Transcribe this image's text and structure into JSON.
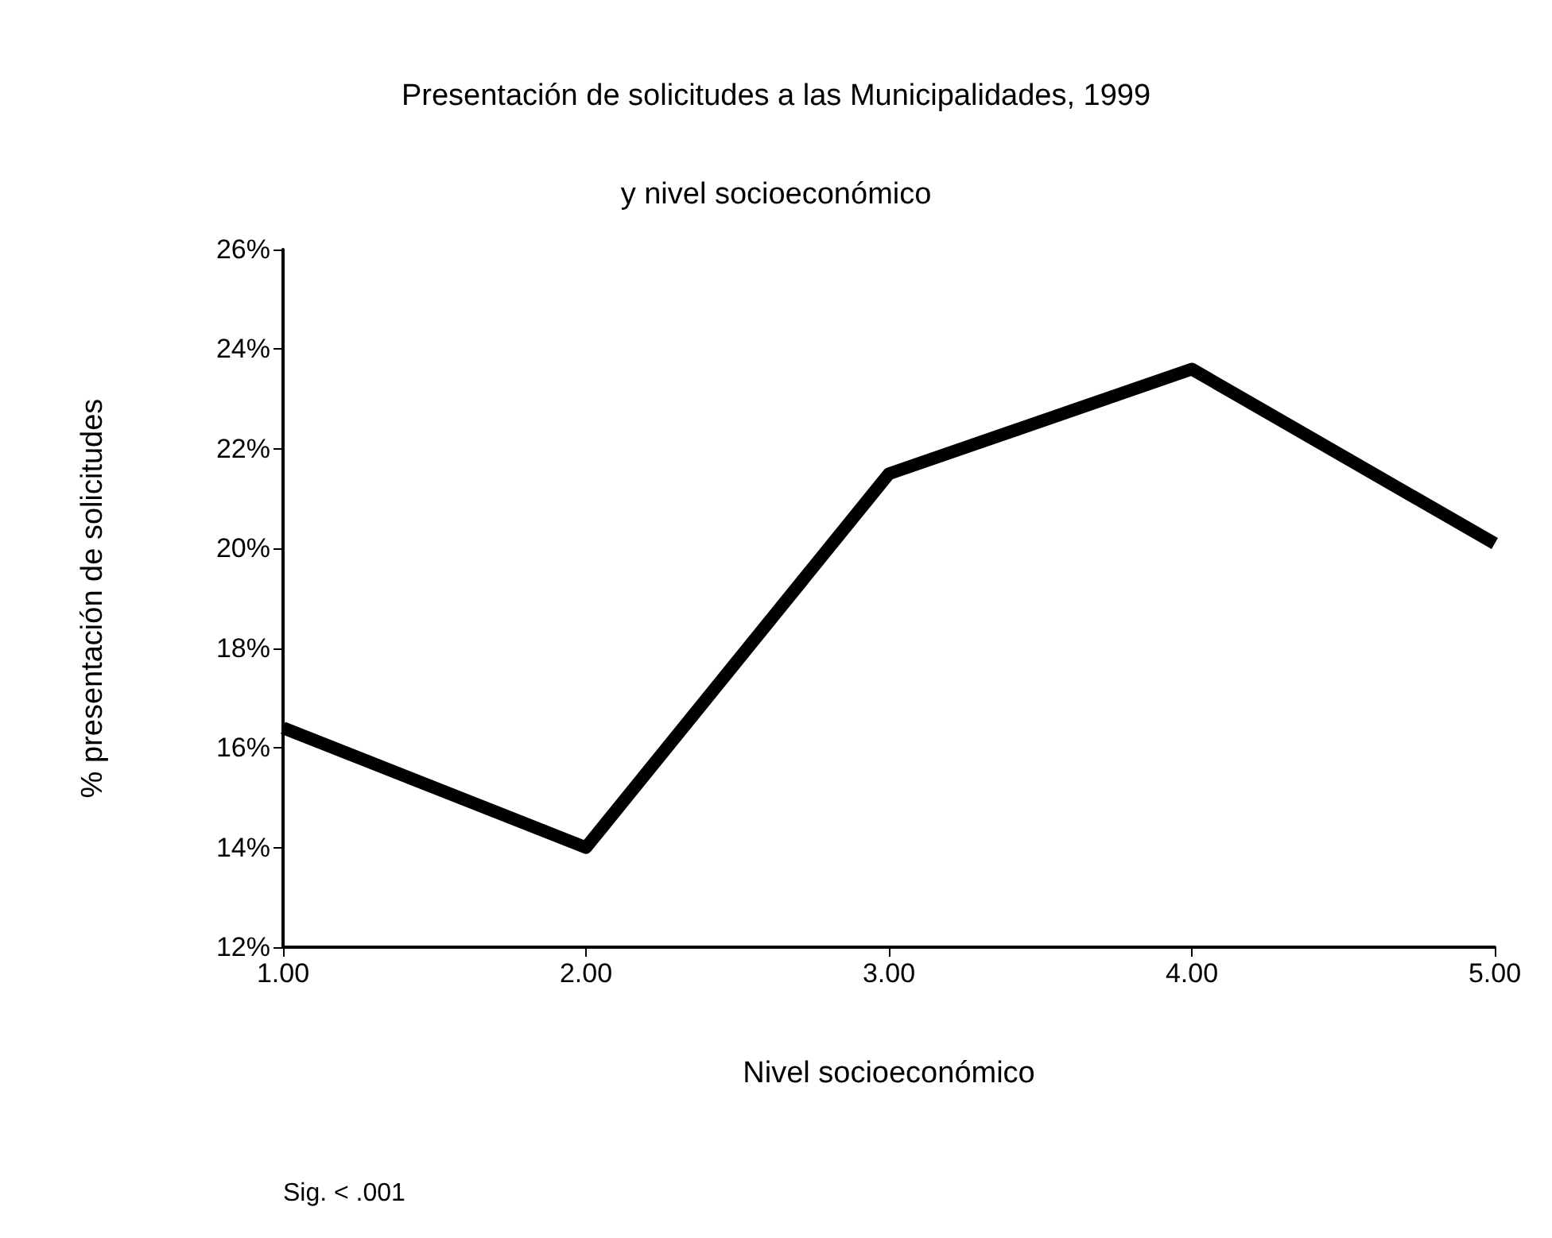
{
  "chart_data": {
    "type": "line",
    "title": "Presentación de solicitudes a las Municipalidades, 1999",
    "subtitle": "y nivel socioeconómico",
    "xlabel": "Nivel socioeconómico",
    "ylabel": "% presentación de solicitudes",
    "annotations": [
      "Sig. < .001"
    ],
    "x": [
      1,
      2,
      3,
      4,
      5
    ],
    "series": [
      {
        "color": "#000000",
        "values": [
          16.4,
          14.0,
          21.5,
          23.6,
          20.1
        ]
      }
    ],
    "xlim": [
      1,
      5
    ],
    "xticks": [
      {
        "value": 1,
        "label": "1.00"
      },
      {
        "value": 2,
        "label": "2.00"
      },
      {
        "value": 3,
        "label": "3.00"
      },
      {
        "value": 4,
        "label": "4.00"
      },
      {
        "value": 5,
        "label": "5.00"
      }
    ],
    "ylim": [
      12,
      26
    ],
    "yticks": [
      {
        "value": 12,
        "label": "12%"
      },
      {
        "value": 14,
        "label": "14%"
      },
      {
        "value": 16,
        "label": "16%"
      },
      {
        "value": 18,
        "label": "18%"
      },
      {
        "value": 20,
        "label": "20%"
      },
      {
        "value": 22,
        "label": "22%"
      },
      {
        "value": 24,
        "label": "24%"
      },
      {
        "value": 26,
        "label": "26%"
      }
    ],
    "grid": false,
    "marker": "none",
    "line_style": "solid"
  }
}
